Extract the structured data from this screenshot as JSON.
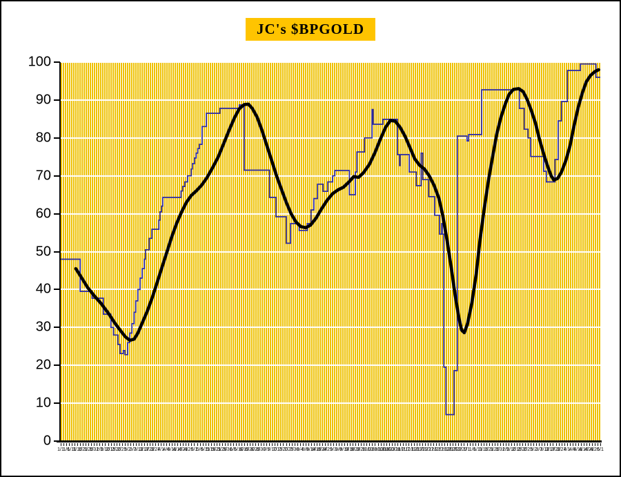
{
  "title": {
    "text": "JC's $BPGOLD",
    "bg_color": "#FFC400",
    "text_color": "#000000"
  },
  "colors": {
    "stripe_gold": "#EEC100",
    "plot_background": "#FFFFFF",
    "gridline": "#FFFFFF",
    "axis": "#000000",
    "daily_line": "#2828A8",
    "ma_line": "#000000",
    "page_background": "#FFFFFF",
    "border": "#000000"
  },
  "y_axis": {
    "min": 0,
    "max": 100,
    "tick_step": 10,
    "ticks": [
      0,
      10,
      20,
      30,
      40,
      50,
      60,
      70,
      80,
      90,
      100
    ]
  },
  "x_axis": {
    "labels": [
      "1/1",
      "1/6",
      "1/11",
      "1/16",
      "1/21",
      "1/26",
      "1/31",
      "2/5",
      "2/10",
      "2/15",
      "2/20",
      "2/25",
      "3/2",
      "3/7",
      "3/12",
      "3/17",
      "3/22",
      "3/27",
      "4/1",
      "4/6",
      "4/11",
      "4/16",
      "4/21",
      "4/26",
      "5/1",
      "5/6",
      "5/11",
      "5/16",
      "5/21",
      "5/26",
      "5/31",
      "6/5",
      "6/10",
      "6/15",
      "6/20",
      "6/25",
      "6/30",
      "7/5",
      "7/10",
      "7/15",
      "7/20",
      "7/25",
      "7/30",
      "8/4",
      "8/9",
      "8/14",
      "8/19",
      "8/24",
      "8/29",
      "9/3",
      "9/8",
      "9/13",
      "9/18",
      "9/23",
      "9/28",
      "10/3",
      "10/8",
      "10/13",
      "10/18",
      "10/23",
      "10/28",
      "11/2",
      "11/7",
      "11/12",
      "11/17",
      "11/22",
      "11/27",
      "12/2",
      "12/7",
      "12/12",
      "12/17",
      "12/22",
      "12/27",
      "1/1",
      "1/6",
      "1/11",
      "1/16",
      "1/21",
      "1/26",
      "1/31",
      "2/5",
      "2/10",
      "2/15",
      "2/20",
      "2/25",
      "3/2",
      "3/7",
      "3/12",
      "3/17",
      "3/22",
      "3/27",
      "4/1",
      "4/6",
      "4/11",
      "4/16",
      "4/21",
      "4/26",
      "5/1"
    ]
  },
  "chart_data": {
    "type": "line",
    "title": "JC's $BPGOLD",
    "xlabel": "",
    "ylabel": "",
    "ylim": [
      0,
      100
    ],
    "grid": "horizontal white gridlines over dense vertical gold stripes",
    "legend_position": "none",
    "series": [
      {
        "name": "BPGOLD daily bullish percent (stepped)",
        "style": "step",
        "color": "#2828A8",
        "points_format": "[x_percent_of_time_axis, value]",
        "points": [
          [
            0.0,
            48
          ],
          [
            3.6,
            39.5
          ],
          [
            5.8,
            37.7
          ],
          [
            7.9,
            33.5
          ],
          [
            9.3,
            30
          ],
          [
            9.8,
            28
          ],
          [
            10.6,
            25.5
          ],
          [
            11.0,
            23.1
          ],
          [
            11.6,
            23.9
          ],
          [
            11.9,
            22.8
          ],
          [
            12.4,
            26
          ],
          [
            12.8,
            28.5
          ],
          [
            13.2,
            31
          ],
          [
            13.6,
            34
          ],
          [
            13.9,
            37
          ],
          [
            14.3,
            40
          ],
          [
            14.7,
            43
          ],
          [
            15.1,
            45.5
          ],
          [
            15.5,
            48
          ],
          [
            15.7,
            50.5
          ],
          [
            16.4,
            53.5
          ],
          [
            16.9,
            55.9
          ],
          [
            18.2,
            58.3
          ],
          [
            18.4,
            60.5
          ],
          [
            18.7,
            62
          ],
          [
            18.9,
            64.3
          ],
          [
            22.3,
            66
          ],
          [
            22.6,
            67.2
          ],
          [
            23.0,
            68.4
          ],
          [
            23.5,
            70
          ],
          [
            24.2,
            71.8
          ],
          [
            24.4,
            73.2
          ],
          [
            24.8,
            74.7
          ],
          [
            25.1,
            76
          ],
          [
            25.4,
            77.2
          ],
          [
            25.7,
            78.3
          ],
          [
            26.2,
            83
          ],
          [
            27.0,
            86.5
          ],
          [
            29.5,
            87.8
          ],
          [
            33.1,
            88.7
          ],
          [
            34.0,
            71.5
          ],
          [
            38.7,
            64.3
          ],
          [
            39.9,
            59.2
          ],
          [
            41.8,
            52.2
          ],
          [
            42.6,
            57.4
          ],
          [
            44.2,
            55.6
          ],
          [
            45.7,
            57.4
          ],
          [
            46.4,
            61
          ],
          [
            46.9,
            64
          ],
          [
            47.6,
            67.8
          ],
          [
            48.6,
            65.9
          ],
          [
            49.5,
            68.4
          ],
          [
            50.4,
            70
          ],
          [
            50.8,
            71.4
          ],
          [
            53.5,
            65
          ],
          [
            54.6,
            71
          ],
          [
            54.9,
            76.3
          ],
          [
            56.3,
            80
          ],
          [
            57.7,
            87.5
          ],
          [
            57.9,
            83.6
          ],
          [
            59.7,
            84.9
          ],
          [
            62.4,
            75.6
          ],
          [
            62.8,
            72.7
          ],
          [
            62.9,
            75.6
          ],
          [
            64.6,
            71
          ],
          [
            65.9,
            67.4
          ],
          [
            66.8,
            76
          ],
          [
            67.1,
            69
          ],
          [
            68.2,
            64.5
          ],
          [
            69.3,
            59.6
          ],
          [
            70.2,
            54.6
          ],
          [
            70.6,
            57.4
          ],
          [
            70.7,
            54.6
          ],
          [
            71.0,
            19.5
          ],
          [
            71.4,
            7
          ],
          [
            72.9,
            18.6
          ],
          [
            73.5,
            80.5
          ],
          [
            75.3,
            79.2
          ],
          [
            75.6,
            80.9
          ],
          [
            78.0,
            92.7
          ],
          [
            85.0,
            87.8
          ],
          [
            85.9,
            82.3
          ],
          [
            86.6,
            80
          ],
          [
            87.1,
            75.1
          ],
          [
            89.5,
            71.2
          ],
          [
            90.0,
            68.4
          ],
          [
            91.6,
            74.3
          ],
          [
            92.2,
            84.5
          ],
          [
            92.8,
            89.6
          ],
          [
            93.9,
            97.8
          ],
          [
            96.3,
            99.5
          ],
          [
            99.2,
            96
          ],
          [
            100.0,
            96
          ]
        ]
      },
      {
        "name": "BPGOLD smoothed moving average",
        "style": "smooth",
        "color": "#000000",
        "points_format": "[x_percent_of_time_axis, value]",
        "points": [
          [
            2.8,
            45.5
          ],
          [
            3.7,
            43.5
          ],
          [
            5.0,
            40.5
          ],
          [
            6.3,
            38.2
          ],
          [
            7.5,
            36.3
          ],
          [
            8.8,
            33.8
          ],
          [
            10.1,
            31
          ],
          [
            11.0,
            29.3
          ],
          [
            12.0,
            27.5
          ],
          [
            12.8,
            26.6
          ],
          [
            13.6,
            26.9
          ],
          [
            14.3,
            28.5
          ],
          [
            15.2,
            31.5
          ],
          [
            16.1,
            34.5
          ],
          [
            17.0,
            38
          ],
          [
            17.9,
            42
          ],
          [
            18.8,
            46
          ],
          [
            19.7,
            50
          ],
          [
            20.6,
            54
          ],
          [
            21.5,
            57.5
          ],
          [
            22.4,
            60.5
          ],
          [
            23.3,
            63
          ],
          [
            24.2,
            64.8
          ],
          [
            25.1,
            66
          ],
          [
            26.1,
            67.5
          ],
          [
            27.1,
            69.5
          ],
          [
            28.1,
            72
          ],
          [
            29.2,
            75
          ],
          [
            30.2,
            78.5
          ],
          [
            31.2,
            82
          ],
          [
            32.2,
            85.3
          ],
          [
            33.1,
            87.7
          ],
          [
            34.0,
            88.8
          ],
          [
            34.8,
            88.9
          ],
          [
            35.5,
            87.8
          ],
          [
            36.4,
            85.5
          ],
          [
            37.3,
            82
          ],
          [
            38.2,
            78
          ],
          [
            39.1,
            74
          ],
          [
            40.0,
            70
          ],
          [
            40.9,
            66.5
          ],
          [
            41.8,
            63
          ],
          [
            42.7,
            60
          ],
          [
            43.6,
            57.8
          ],
          [
            44.5,
            56.6
          ],
          [
            45.4,
            56.3
          ],
          [
            46.3,
            57
          ],
          [
            47.3,
            58.8
          ],
          [
            48.3,
            61.2
          ],
          [
            49.4,
            63.6
          ],
          [
            50.4,
            65.3
          ],
          [
            51.4,
            66.3
          ],
          [
            52.4,
            67
          ],
          [
            53.5,
            68.5
          ],
          [
            54.3,
            69.8
          ],
          [
            55.2,
            69.6
          ],
          [
            56.1,
            70.8
          ],
          [
            57.2,
            73
          ],
          [
            58.2,
            76
          ],
          [
            59.2,
            79.5
          ],
          [
            60.2,
            82.8
          ],
          [
            61.1,
            84.6
          ],
          [
            62.0,
            84.4
          ],
          [
            62.9,
            82.8
          ],
          [
            63.8,
            80.5
          ],
          [
            64.7,
            77.5
          ],
          [
            65.6,
            74.5
          ],
          [
            66.5,
            72.8
          ],
          [
            67.4,
            71.8
          ],
          [
            68.3,
            70
          ],
          [
            69.2,
            67.5
          ],
          [
            70.1,
            64
          ],
          [
            70.8,
            59.5
          ],
          [
            71.6,
            53
          ],
          [
            72.4,
            45.5
          ],
          [
            73.1,
            38.5
          ],
          [
            73.8,
            32.5
          ],
          [
            74.3,
            29.3
          ],
          [
            74.8,
            28.6
          ],
          [
            75.4,
            31
          ],
          [
            76.2,
            36.5
          ],
          [
            77.0,
            44
          ],
          [
            77.7,
            53
          ],
          [
            78.5,
            61.5
          ],
          [
            79.3,
            69
          ],
          [
            80.1,
            75.5
          ],
          [
            80.8,
            81
          ],
          [
            81.6,
            85.5
          ],
          [
            82.4,
            89
          ],
          [
            83.1,
            91.5
          ],
          [
            83.9,
            92.8
          ],
          [
            84.9,
            93
          ],
          [
            85.7,
            92.2
          ],
          [
            86.4,
            90.3
          ],
          [
            87.2,
            87.3
          ],
          [
            88.0,
            83.8
          ],
          [
            88.7,
            79.8
          ],
          [
            89.5,
            75.8
          ],
          [
            90.3,
            72.3
          ],
          [
            90.9,
            70
          ],
          [
            91.4,
            68.9
          ],
          [
            92.1,
            69.3
          ],
          [
            92.8,
            71
          ],
          [
            93.6,
            74
          ],
          [
            94.4,
            78
          ],
          [
            95.1,
            83
          ],
          [
            95.9,
            88
          ],
          [
            96.7,
            92
          ],
          [
            97.4,
            94.8
          ],
          [
            98.2,
            96.5
          ],
          [
            99.0,
            97.5
          ],
          [
            99.7,
            98
          ]
        ]
      }
    ]
  }
}
